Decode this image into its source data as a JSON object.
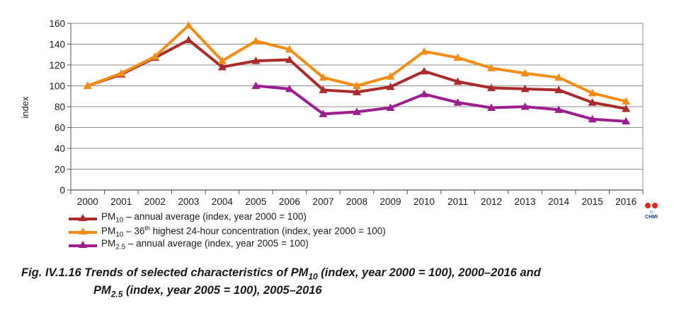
{
  "chart_data": {
    "type": "line",
    "ylabel": "index",
    "xlabel": "",
    "ylim": [
      0,
      160
    ],
    "yticks": [
      0,
      20,
      40,
      60,
      80,
      100,
      120,
      140,
      160
    ],
    "grid": true,
    "legend_position": "bottom-left",
    "categories": [
      "2000",
      "2001",
      "2002",
      "2003",
      "2004",
      "2005",
      "2006",
      "2007",
      "2008",
      "2009",
      "2010",
      "2011",
      "2012",
      "2013",
      "2014",
      "2015",
      "2016"
    ],
    "series": [
      {
        "name_parts": [
          "PM",
          "10",
          " – annual average (index, year 2000 = 100)"
        ],
        "color": "#a92b2b",
        "values": [
          100,
          111,
          127,
          144,
          118,
          124,
          125,
          96,
          94,
          99,
          114,
          104,
          98,
          97,
          96,
          84,
          78
        ]
      },
      {
        "name_parts": [
          "PM",
          "10",
          " – 36",
          "th",
          " highest 24-hour concentration (index, year 2000 = 100)"
        ],
        "color": "#f28d17",
        "values": [
          100,
          112,
          128,
          158,
          124,
          143,
          135,
          108,
          100,
          109,
          133,
          127,
          117,
          112,
          108,
          93,
          85
        ]
      },
      {
        "name_parts": [
          "PM",
          "2.5",
          " – annual average (index, year 2005 = 100)"
        ],
        "color": "#9c1f8e",
        "values": [
          null,
          null,
          null,
          null,
          null,
          100,
          97,
          73,
          75,
          79,
          92,
          84,
          79,
          80,
          77,
          68,
          66
        ]
      }
    ]
  },
  "caption": {
    "prefix": "Fig. IV.1.16  Trends of selected characteristics of PM",
    "sub1": "10",
    "middle": " (index, year 2000 = 100), 2000–2016 and",
    "line2_start": "PM",
    "sub2": "2.5",
    "line2_end": " (index, year 2005 = 100), 2005–2016"
  },
  "logo": {
    "text": "CHMI",
    "icon": "chmi-logo-icon",
    "colors": [
      "#e1261c",
      "#1c73c7"
    ]
  }
}
